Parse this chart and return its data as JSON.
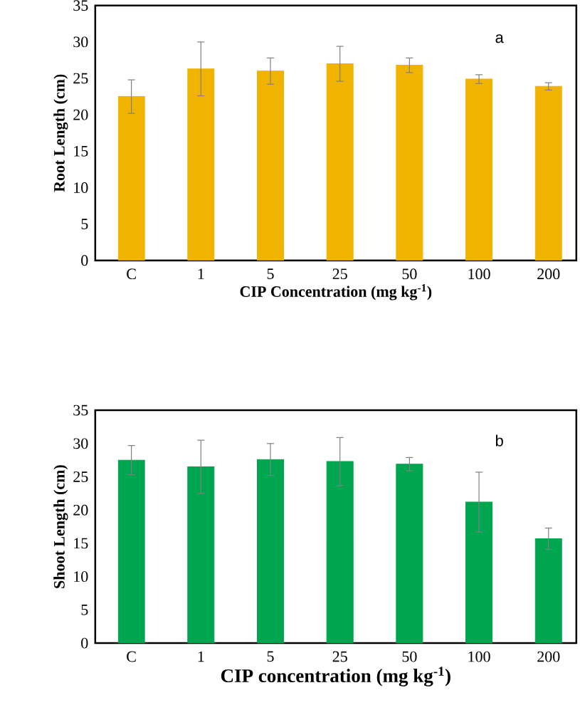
{
  "chart_data": [
    {
      "type": "bar",
      "categories": [
        "C",
        "1",
        "5",
        "25",
        "50",
        "100",
        "200"
      ],
      "values": [
        22.5,
        26.3,
        26.0,
        27.0,
        26.8,
        24.9,
        23.9
      ],
      "errors": [
        2.3,
        3.7,
        1.8,
        2.4,
        1.0,
        0.6,
        0.5
      ],
      "color": "#f0b400",
      "ylabel": "Root Length (cm)",
      "xlabel": "CIP Concentration (mg kg$^{-1}$)",
      "ylim": [
        0,
        35
      ],
      "yticks": [
        0,
        5,
        10,
        15,
        20,
        25,
        30,
        35
      ],
      "annotations": [
        "a"
      ]
    },
    {
      "type": "bar",
      "categories": [
        "C",
        "1",
        "5",
        "25",
        "50",
        "100",
        "200"
      ],
      "values": [
        27.5,
        26.5,
        27.6,
        27.3,
        26.9,
        21.2,
        15.7
      ],
      "errors": [
        2.2,
        4.0,
        2.4,
        3.6,
        1.0,
        4.5,
        1.6
      ],
      "color": "#00a550",
      "ylabel": "Shoot Length (cm)",
      "xlabel": "CIP concentration (mg kg$^{-1}$)",
      "ylim": [
        0,
        35
      ],
      "yticks": [
        0,
        5,
        10,
        15,
        20,
        25,
        30,
        35
      ],
      "annotations": [
        "b"
      ]
    }
  ]
}
